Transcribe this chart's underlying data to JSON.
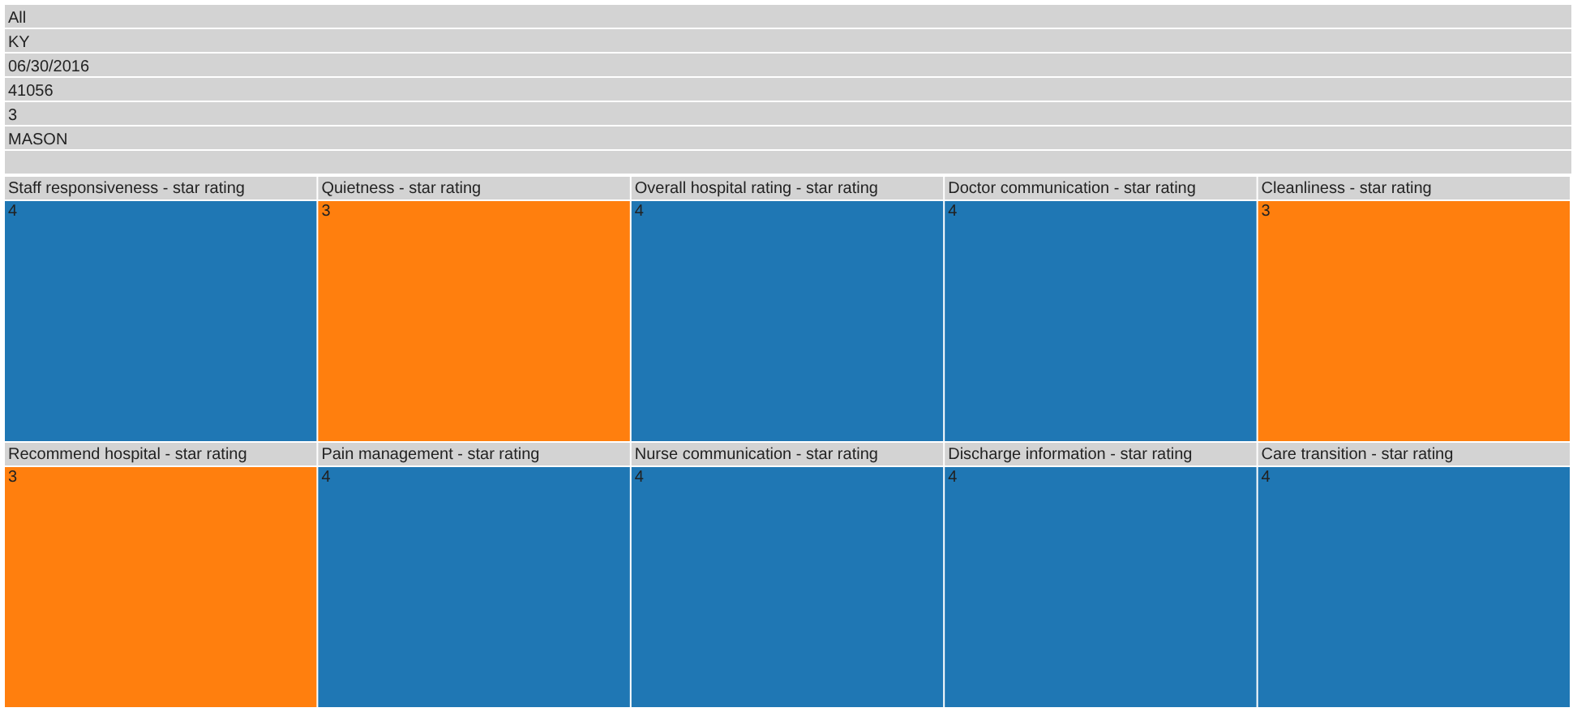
{
  "chart_data": {
    "type": "other",
    "annotations": [
      "All",
      "KY",
      "06/30/2016",
      "41056",
      "3",
      "MASON",
      null
    ],
    "categories": [
      "Staff responsiveness - star rating",
      "Quietness - star rating",
      "Overall hospital rating - star rating",
      "Doctor communication - star rating",
      "Cleanliness - star rating",
      "Recommend hospital - star rating",
      "Pain management - star rating",
      "Nurse communication - star rating",
      "Discharge information - star rating",
      "Care transition - star rating"
    ],
    "values": [
      4,
      3,
      4,
      4,
      3,
      3,
      4,
      4,
      4,
      4
    ],
    "colors": [
      "#1f77b4",
      "#ff7f0e",
      "#1f77b4",
      "#1f77b4",
      "#ff7f0e",
      "#ff7f0e",
      "#1f77b4",
      "#1f77b4",
      "#1f77b4",
      "#1f77b4"
    ],
    "data_labels": true
  }
}
